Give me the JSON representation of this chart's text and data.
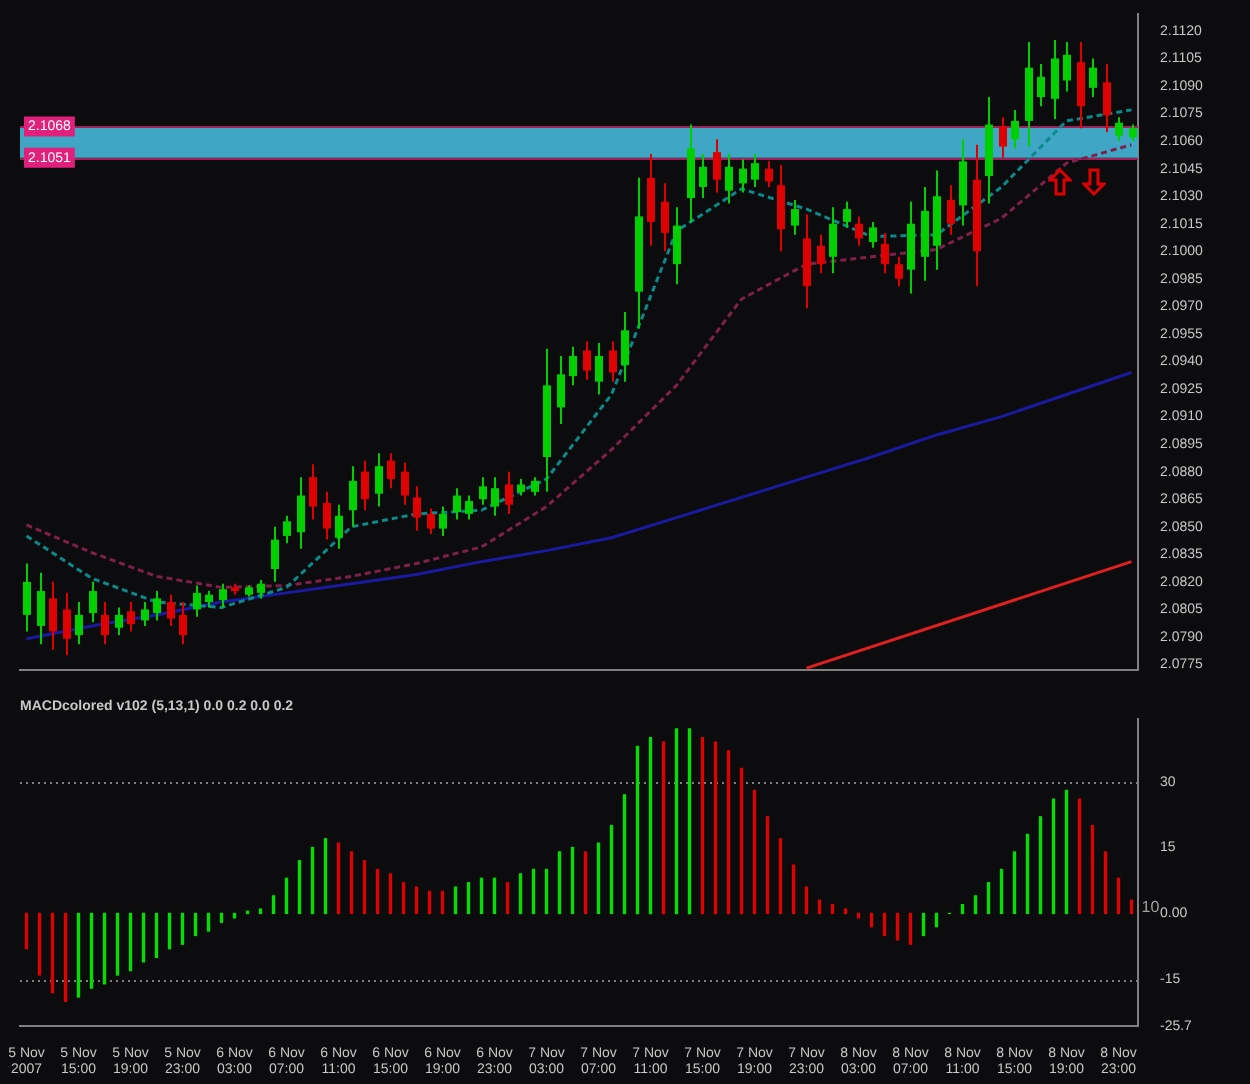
{
  "chart_data": [
    {
      "type": "candlestick",
      "tick_labels": "y",
      "categories": [
        null,
        null,
        null,
        null,
        null,
        null,
        null,
        null,
        null,
        null,
        null,
        null,
        null,
        null,
        null,
        null,
        null,
        null,
        null,
        null,
        null,
        null,
        null,
        null,
        null,
        null,
        null,
        null,
        null,
        null,
        null,
        null,
        null,
        null,
        null,
        null,
        null,
        null,
        null,
        null,
        null,
        null,
        null,
        null,
        null,
        null,
        null,
        null,
        null,
        null,
        null,
        null,
        null,
        null,
        null,
        null,
        null,
        null,
        null,
        null,
        null,
        null,
        null,
        null,
        null,
        null,
        null,
        null,
        null,
        null,
        null,
        null,
        null,
        null,
        null,
        null,
        null,
        null,
        null,
        null,
        null,
        null,
        null,
        null,
        null,
        null
      ],
      "ohlc": [
        [
          2.0802,
          2.083,
          2.0793,
          2.082
        ],
        [
          2.0796,
          2.0825,
          2.0786,
          2.0815
        ],
        [
          2.0811,
          2.082,
          2.0783,
          2.0793
        ],
        [
          2.0805,
          2.0814,
          2.078,
          2.0789
        ],
        [
          2.0791,
          2.0809,
          2.0786,
          2.0802
        ],
        [
          2.0803,
          2.082,
          2.0798,
          2.0815
        ],
        [
          2.0802,
          2.0809,
          2.0786,
          2.0791
        ],
        [
          2.0795,
          2.0806,
          2.0791,
          2.0802
        ],
        [
          2.0804,
          2.0809,
          2.0793,
          2.0797
        ],
        [
          2.0799,
          2.0809,
          2.0796,
          2.0805
        ],
        [
          2.0803,
          2.0815,
          2.0799,
          2.0811
        ],
        [
          2.0809,
          2.0813,
          2.0796,
          2.08
        ],
        [
          2.0802,
          2.0809,
          2.0786,
          2.0791
        ],
        [
          2.0805,
          2.0818,
          2.0801,
          2.0814
        ],
        [
          2.0809,
          2.0815,
          2.0806,
          2.0813
        ],
        [
          2.081,
          2.0819,
          2.0806,
          2.0816
        ],
        [
          2.0817,
          2.0819,
          2.0813,
          2.0815
        ],
        [
          2.0813,
          2.0818,
          2.0812,
          2.0817
        ],
        [
          2.0814,
          2.0821,
          2.0811,
          2.0819
        ],
        [
          2.0827,
          2.085,
          2.082,
          2.0843
        ],
        [
          2.0845,
          2.0856,
          2.0841,
          2.0853
        ],
        [
          2.0847,
          2.0877,
          2.0838,
          2.0867
        ],
        [
          2.0877,
          2.0884,
          2.0854,
          2.0861
        ],
        [
          2.0863,
          2.0869,
          2.0843,
          2.0849
        ],
        [
          2.0844,
          2.0862,
          2.0838,
          2.0856
        ],
        [
          2.0859,
          2.0883,
          2.085,
          2.0875
        ],
        [
          2.088,
          2.0886,
          2.0859,
          2.0865
        ],
        [
          2.0868,
          2.089,
          2.0861,
          2.0883
        ],
        [
          2.0886,
          2.089,
          2.0871,
          2.0876
        ],
        [
          2.088,
          2.0885,
          2.0862,
          2.0867
        ],
        [
          2.0866,
          2.0872,
          2.0848,
          2.0855
        ],
        [
          2.0857,
          2.086,
          2.0846,
          2.0849
        ],
        [
          2.0849,
          2.0861,
          2.0845,
          2.0857
        ],
        [
          2.0858,
          2.0871,
          2.0854,
          2.0867
        ],
        [
          2.0857,
          2.0867,
          2.0854,
          2.0864
        ],
        [
          2.0865,
          2.0877,
          2.0862,
          2.0872
        ],
        [
          2.0861,
          2.0877,
          2.0856,
          2.0871
        ],
        [
          2.0873,
          2.088,
          2.0857,
          2.0862
        ],
        [
          2.0869,
          2.0876,
          2.0867,
          2.0873
        ],
        [
          2.0869,
          2.0877,
          2.0867,
          2.0875
        ],
        [
          2.0888,
          2.0947,
          2.0869,
          2.0927
        ],
        [
          2.0915,
          2.0943,
          2.0906,
          2.0933
        ],
        [
          2.0932,
          2.0948,
          2.0927,
          2.0943
        ],
        [
          2.0946,
          2.0951,
          2.093,
          2.0935
        ],
        [
          2.0929,
          2.095,
          2.0922,
          2.0943
        ],
        [
          2.0946,
          2.0951,
          2.0929,
          2.0934
        ],
        [
          2.0938,
          2.0967,
          2.0929,
          2.0957
        ],
        [
          2.0978,
          2.104,
          2.0958,
          2.1019
        ],
        [
          2.104,
          2.1053,
          2.1003,
          2.1016
        ],
        [
          2.1027,
          2.1037,
          2.1,
          2.101
        ],
        [
          2.0993,
          2.1024,
          2.0982,
          2.1014
        ],
        [
          2.1029,
          2.1069,
          2.1016,
          2.1056
        ],
        [
          2.1035,
          2.1053,
          2.1029,
          2.1046
        ],
        [
          2.1054,
          2.1061,
          2.1032,
          2.1039
        ],
        [
          2.1033,
          2.1053,
          2.1026,
          2.1046
        ],
        [
          2.1037,
          2.105,
          2.1032,
          2.1045
        ],
        [
          2.1039,
          2.1053,
          2.1035,
          2.1048
        ],
        [
          2.1045,
          2.1049,
          2.1035,
          2.1038
        ],
        [
          2.1036,
          2.1047,
          2.1,
          2.1012
        ],
        [
          2.1014,
          2.1028,
          2.1009,
          2.1023
        ],
        [
          2.1007,
          2.102,
          2.0969,
          2.0981
        ],
        [
          2.1003,
          2.1009,
          2.0988,
          2.0993
        ],
        [
          2.0997,
          2.1024,
          2.0988,
          2.1015
        ],
        [
          2.1016,
          2.1027,
          2.1013,
          2.1023
        ],
        [
          2.1015,
          2.1019,
          2.1003,
          2.1007
        ],
        [
          2.1005,
          2.1016,
          2.1002,
          2.1013
        ],
        [
          2.1004,
          2.101,
          2.0988,
          2.0993
        ],
        [
          2.0993,
          2.0997,
          2.0981,
          2.0985
        ],
        [
          2.099,
          2.1027,
          2.0977,
          2.1015
        ],
        [
          2.0997,
          2.1035,
          2.0984,
          2.1022
        ],
        [
          2.1003,
          2.1044,
          2.099,
          2.103
        ],
        [
          2.1028,
          2.1036,
          2.1009,
          2.1015
        ],
        [
          2.1025,
          2.1061,
          2.1014,
          2.1049
        ],
        [
          2.1039,
          2.1058,
          2.0981,
          2.1
        ],
        [
          2.1041,
          2.1084,
          2.1026,
          2.1069
        ],
        [
          2.1068,
          2.1073,
          2.1051,
          2.1057
        ],
        [
          2.1061,
          2.1077,
          2.1056,
          2.1071
        ],
        [
          2.1071,
          2.1114,
          2.1057,
          2.11
        ],
        [
          2.1084,
          2.1102,
          2.1079,
          2.1095
        ],
        [
          2.1083,
          2.1115,
          2.1072,
          2.1105
        ],
        [
          2.1093,
          2.1114,
          2.1087,
          2.1107
        ],
        [
          2.1103,
          2.1114,
          2.1067,
          2.1079
        ],
        [
          2.1089,
          2.1105,
          2.1084,
          2.11
        ],
        [
          2.1092,
          2.1102,
          2.1065,
          2.1074
        ],
        [
          2.1063,
          2.1073,
          2.106,
          2.107
        ],
        [
          2.1062,
          2.1069,
          2.106,
          2.1067
        ]
      ],
      "colors": [
        "#00d000",
        "#00d000",
        "#e00000",
        "#e00000",
        "#00d000",
        "#00d000",
        "#e00000",
        "#00d000",
        "#e00000",
        "#00d000",
        "#00d000",
        "#e00000",
        "#e00000",
        "#00d000",
        "#00d000",
        "#00d000",
        "#e00000",
        "#00d000",
        "#00d000",
        "#00d000",
        "#00d000",
        "#00d000",
        "#e00000",
        "#e00000",
        "#00d000",
        "#00d000",
        "#e00000",
        "#00d000",
        "#e00000",
        "#e00000",
        "#e00000",
        "#e00000",
        "#00d000",
        "#00d000",
        "#00d000",
        "#00d000",
        "#00d000",
        "#e00000",
        "#00d000",
        "#00d000",
        "#00d000",
        "#00d000",
        "#00d000",
        "#e00000",
        "#00d000",
        "#e00000",
        "#00d000",
        "#00d000",
        "#e00000",
        "#e00000",
        "#00d000",
        "#00d000",
        "#00d000",
        "#e00000",
        "#00d000",
        "#00d000",
        "#00d000",
        "#e00000",
        "#e00000",
        "#00d000",
        "#e00000",
        "#e00000",
        "#00d000",
        "#00d000",
        "#e00000",
        "#00d000",
        "#e00000",
        "#e00000",
        "#00d000",
        "#00d000",
        "#00d000",
        "#e00000",
        "#00d000",
        "#e00000",
        "#00d000",
        "#e00000",
        "#00d000",
        "#00d000",
        "#00d000",
        "#00d000",
        "#00d000",
        "#e00000",
        "#00d000",
        "#e00000",
        "#00d000",
        "#00d000"
      ],
      "series": [
        {
          "type": "line",
          "color": "#0a8a8a",
          "line_style": "dotted",
          "values": [
            2.0845,
            null,
            null,
            null,
            null,
            2.0822,
            null,
            null,
            null,
            null,
            2.0809,
            null,
            null,
            null,
            null,
            2.0806,
            null,
            null,
            null,
            null,
            2.0817,
            null,
            null,
            null,
            null,
            2.085,
            null,
            null,
            null,
            null,
            2.0857,
            null,
            null,
            null,
            null,
            2.0859,
            null,
            null,
            null,
            null,
            2.0876,
            null,
            null,
            null,
            null,
            2.0922,
            null,
            null,
            null,
            null,
            2.1011,
            null,
            null,
            null,
            null,
            2.1034,
            null,
            null,
            null,
            null,
            2.1023,
            null,
            null,
            null,
            null,
            2.1008,
            null,
            null,
            null,
            null,
            2.1009,
            null,
            null,
            null,
            null,
            2.1035,
            null,
            null,
            null,
            null,
            2.1071,
            null,
            null,
            null,
            null,
            2.1077
          ]
        },
        {
          "type": "line",
          "color": "#80204a",
          "line_style": "dotted",
          "values": [
            2.0851,
            null,
            null,
            null,
            null,
            2.0836,
            null,
            null,
            null,
            null,
            2.0823,
            null,
            null,
            null,
            null,
            2.0817,
            null,
            null,
            null,
            null,
            2.0818,
            null,
            null,
            null,
            null,
            2.0823,
            null,
            null,
            null,
            null,
            2.083,
            null,
            null,
            null,
            null,
            2.0839,
            null,
            null,
            null,
            null,
            2.0861,
            null,
            null,
            null,
            null,
            2.0892,
            null,
            null,
            null,
            null,
            2.0927,
            null,
            null,
            null,
            null,
            2.0974,
            null,
            null,
            null,
            null,
            2.0993,
            null,
            null,
            null,
            null,
            2.0997,
            null,
            null,
            null,
            null,
            2.1001,
            null,
            null,
            null,
            null,
            2.1018,
            null,
            null,
            null,
            null,
            2.1048,
            null,
            null,
            null,
            null,
            2.1058
          ]
        },
        {
          "type": "line",
          "color": "#1a1aa0",
          "line_style": "solid",
          "values": [
            2.0789,
            null,
            null,
            null,
            null,
            2.0796,
            null,
            null,
            null,
            null,
            2.0802,
            null,
            null,
            null,
            null,
            2.0809,
            null,
            null,
            null,
            null,
            2.0814,
            null,
            null,
            null,
            null,
            2.0819,
            null,
            null,
            null,
            null,
            2.0824,
            null,
            null,
            null,
            null,
            2.0831,
            null,
            null,
            null,
            null,
            2.0837,
            null,
            null,
            null,
            null,
            2.0844,
            null,
            null,
            null,
            null,
            2.0855,
            null,
            null,
            null,
            null,
            2.0866,
            null,
            null,
            null,
            null,
            2.0877,
            null,
            null,
            null,
            null,
            2.0888,
            null,
            null,
            null,
            null,
            2.09,
            null,
            null,
            null,
            null,
            2.091,
            null,
            null,
            null,
            null,
            2.0922,
            null,
            null,
            null,
            null,
            2.0934
          ]
        },
        {
          "type": "line",
          "color": "#e02020",
          "line_style": "solid",
          "values": [
            null,
            null,
            null,
            null,
            null,
            null,
            null,
            null,
            null,
            null,
            null,
            null,
            null,
            null,
            null,
            null,
            null,
            null,
            null,
            null,
            null,
            null,
            null,
            null,
            null,
            null,
            null,
            null,
            null,
            null,
            null,
            null,
            null,
            null,
            null,
            null,
            null,
            null,
            null,
            null,
            null,
            null,
            null,
            null,
            null,
            null,
            null,
            null,
            null,
            null,
            null,
            null,
            null,
            null,
            null,
            null,
            null,
            null,
            null,
            null,
            2.0773,
            null,
            null,
            null,
            null,
            null,
            null,
            null,
            null,
            null,
            null,
            null,
            null,
            null,
            null,
            null,
            null,
            null,
            null,
            null,
            null,
            null,
            null,
            null,
            null,
            2.0831
          ]
        }
      ],
      "ylim": [
        2.0772,
        2.1129
      ],
      "yticks": [
        2.0775,
        {
          "value": 2.079,
          "label": "2.0790"
        },
        2.0805,
        {
          "value": 2.082,
          "label": "2.0820"
        },
        2.0835,
        {
          "value": 2.085,
          "label": "2.0850"
        },
        2.0865,
        {
          "value": 2.088,
          "label": "2.0880"
        },
        2.0895,
        {
          "value": 2.091,
          "label": "2.0910"
        },
        2.0925,
        {
          "value": 2.094,
          "label": "2.0940"
        },
        2.0955,
        {
          "value": 2.097,
          "label": "2.0970"
        },
        2.0985,
        {
          "value": 2.1,
          "label": "2.1000"
        },
        2.1015,
        {
          "value": 2.103,
          "label": "2.1030"
        },
        2.1045,
        {
          "value": 2.106,
          "label": "2.1060"
        },
        2.1075,
        {
          "value": 2.109,
          "label": "2.1090"
        },
        2.1105,
        {
          "value": 2.112,
          "label": "2.1120"
        }
      ],
      "bands": [
        {
          "axis": "y",
          "from": 2.1051,
          "to": 2.1068,
          "color": "#3fa6c6"
        }
      ],
      "ref_lines": [
        {
          "axis": "y",
          "value": 2.1068,
          "label": "2.1068",
          "color": "#a0205a",
          "line_style": "solid"
        },
        {
          "axis": "y",
          "value": 2.1051,
          "label": "2.1051",
          "color": "#a0205a",
          "line_style": "solid"
        }
      ]
    },
    {
      "type": "bar",
      "title": "MACDcolored v102 (5,13,1) 0.0 0.2 0.0 0.2",
      "categories": [
        "5 Nov 2007",
        null,
        null,
        null,
        "5 Nov 15:00",
        null,
        null,
        null,
        "5 Nov 19:00",
        null,
        null,
        null,
        "5 Nov 23:00",
        null,
        null,
        null,
        "6 Nov 03:00",
        null,
        null,
        null,
        "6 Nov 07:00",
        null,
        null,
        null,
        "6 Nov 11:00",
        null,
        null,
        null,
        "6 Nov 15:00",
        null,
        null,
        null,
        "6 Nov 19:00",
        null,
        null,
        null,
        "6 Nov 23:00",
        null,
        null,
        null,
        "7 Nov 03:00",
        null,
        null,
        null,
        "7 Nov 07:00",
        null,
        null,
        null,
        "7 Nov 11:00",
        null,
        null,
        null,
        "7 Nov 15:00",
        null,
        null,
        null,
        "7 Nov 19:00",
        null,
        null,
        null,
        "7 Nov 23:00",
        null,
        null,
        null,
        "8 Nov 03:00",
        null,
        null,
        null,
        "8 Nov 07:00",
        null,
        null,
        null,
        "8 Nov 11:00",
        null,
        null,
        null,
        "8 Nov 15:00",
        null,
        null,
        null,
        "8 Nov 19:00",
        null,
        null,
        null,
        "8 Nov 23:00",
        null
      ],
      "values": [
        -8,
        -14,
        -18,
        -20,
        -19,
        -17,
        -16,
        -14,
        -13,
        -11,
        -10,
        -8,
        -7,
        -5,
        -4,
        -2,
        -1,
        0.5,
        1,
        4,
        8,
        12,
        15,
        17,
        16,
        14,
        12,
        10,
        9,
        7,
        6,
        5,
        5,
        6,
        7,
        8,
        8,
        7,
        9,
        10,
        10,
        14,
        15,
        14,
        16,
        20,
        27,
        38,
        40,
        39,
        42,
        42,
        40,
        39,
        37,
        33,
        28,
        22,
        17,
        11,
        6,
        3,
        2,
        1,
        -1,
        -3,
        -5,
        -6,
        -7,
        -5,
        -3,
        0,
        2,
        4,
        7,
        10,
        14,
        18,
        22,
        26,
        28,
        26,
        20,
        14,
        8,
        3
      ],
      "colors": [
        "#e00000",
        "#e00000",
        "#e00000",
        "#e00000",
        "#00e000",
        "#00e000",
        "#00e000",
        "#00e000",
        "#00e000",
        "#00e000",
        "#00e000",
        "#00e000",
        "#00e000",
        "#00e000",
        "#00e000",
        "#00e000",
        "#00e000",
        "#00e000",
        "#00e000",
        "#00e000",
        "#00e000",
        "#00e000",
        "#00e000",
        "#00e000",
        "#e00000",
        "#e00000",
        "#e00000",
        "#e00000",
        "#e00000",
        "#e00000",
        "#e00000",
        "#e00000",
        "#e00000",
        "#00e000",
        "#00e000",
        "#00e000",
        "#00e000",
        "#e00000",
        "#00e000",
        "#00e000",
        "#00e000",
        "#00e000",
        "#00e000",
        "#e00000",
        "#00e000",
        "#00e000",
        "#00e000",
        "#00e000",
        "#00e000",
        "#e00000",
        "#00e000",
        "#00e000",
        "#e00000",
        "#e00000",
        "#e00000",
        "#e00000",
        "#e00000",
        "#e00000",
        "#e00000",
        "#e00000",
        "#e00000",
        "#e00000",
        "#e00000",
        "#e00000",
        "#e00000",
        "#e00000",
        "#e00000",
        "#e00000",
        "#e00000",
        "#00e000",
        "#00e000",
        "#00e000",
        "#00e000",
        "#00e000",
        "#00e000",
        "#00e000",
        "#00e000",
        "#00e000",
        "#00e000",
        "#00e000",
        "#00e000",
        "#e00000",
        "#e00000",
        "#e00000",
        "#e00000",
        "#e00000"
      ],
      "ylim": [
        -25.7,
        44.3
      ],
      "yticks": [
        {
          "value": -25.7,
          "label": "-25.7"
        },
        -15,
        {
          "value": 0,
          "label": "0.00"
        },
        15,
        30
      ],
      "ref_lines": [
        {
          "axis": "y",
          "value": 30,
          "color": "#808080",
          "line_style": "dotted"
        },
        {
          "axis": "y",
          "value": -15,
          "color": "#808080",
          "line_style": "dotted"
        }
      ],
      "annotations": [
        "10"
      ]
    }
  ]
}
